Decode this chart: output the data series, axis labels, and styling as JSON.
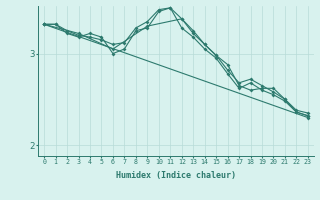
{
  "xlabel": "Humidex (Indice chaleur)",
  "bg_color": "#d8f2ee",
  "line_color": "#2d7a6e",
  "grid_color": "#b8dcd8",
  "axis_color": "#2d7a6e",
  "text_color": "#2d7a6e",
  "xlim": [
    -0.5,
    23.5
  ],
  "ylim": [
    1.88,
    3.52
  ],
  "yticks": [
    2,
    3
  ],
  "xticks": [
    0,
    1,
    2,
    3,
    4,
    5,
    6,
    7,
    8,
    9,
    10,
    11,
    12,
    13,
    14,
    15,
    16,
    17,
    18,
    19,
    20,
    21,
    22,
    23
  ],
  "lines": [
    {
      "x": [
        0,
        1,
        2,
        3,
        4,
        5,
        6,
        7,
        8,
        9,
        10,
        11,
        12,
        13,
        14,
        15,
        16,
        17,
        18,
        19,
        20,
        21,
        22,
        23
      ],
      "y": [
        3.32,
        3.32,
        3.25,
        3.2,
        3.18,
        3.15,
        3.1,
        3.12,
        3.28,
        3.35,
        3.48,
        3.5,
        3.38,
        3.22,
        3.1,
        2.98,
        2.82,
        2.68,
        2.72,
        2.65,
        2.58,
        2.5,
        2.38,
        2.35
      ]
    },
    {
      "x": [
        0,
        1,
        2,
        3,
        4,
        5,
        6,
        7,
        8,
        9,
        10,
        11,
        12,
        13,
        14,
        15,
        16,
        17,
        18,
        19,
        20,
        21,
        22,
        23
      ],
      "y": [
        3.32,
        3.32,
        3.22,
        3.18,
        3.22,
        3.18,
        3.0,
        3.05,
        3.25,
        3.28,
        3.46,
        3.5,
        3.28,
        3.18,
        3.05,
        2.95,
        2.78,
        2.62,
        2.68,
        2.6,
        2.55,
        2.48,
        2.36,
        2.32
      ]
    },
    {
      "x": [
        0,
        23
      ],
      "y": [
        3.32,
        2.3
      ]
    },
    {
      "x": [
        0,
        3,
        6,
        9,
        12,
        13,
        14,
        15,
        16,
        17,
        18,
        19,
        20,
        21,
        22,
        23
      ],
      "y": [
        3.32,
        3.22,
        3.05,
        3.3,
        3.38,
        3.25,
        3.1,
        2.98,
        2.88,
        2.65,
        2.6,
        2.62,
        2.62,
        2.5,
        2.36,
        2.32
      ]
    }
  ],
  "marker_size": 2.0,
  "linewidth": 0.8
}
